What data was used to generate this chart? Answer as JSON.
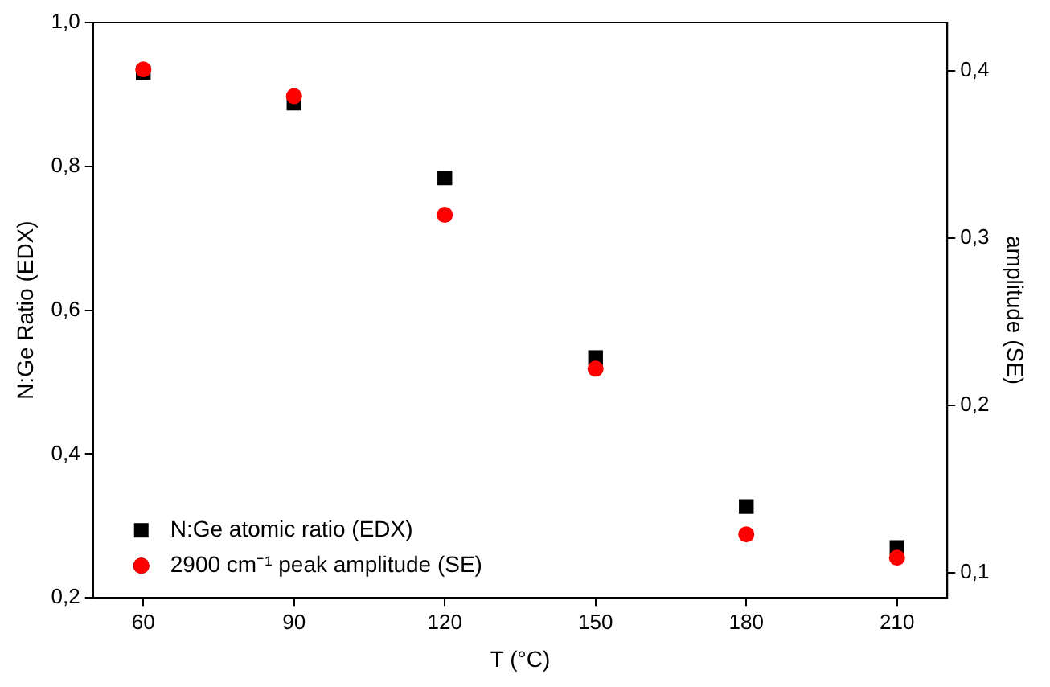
{
  "chart_data": {
    "type": "scatter",
    "xlabel": "T (°C)",
    "ylabel": "N:Ge Ratio (EDX)",
    "y2label": "amplitude (SE)",
    "x": [
      60,
      90,
      120,
      150,
      180,
      210
    ],
    "series": [
      {
        "name": "N:Ge atomic ratio (EDX)",
        "color": "#000000",
        "marker": "square",
        "values": [
          0.93,
          0.888,
          0.784,
          0.534,
          0.327,
          0.27
        ]
      },
      {
        "name": "2900 cm⁻¹ peak amplitude (SE)",
        "color": "#ff0000",
        "marker": "circle",
        "axis": "y2",
        "values": [
          0.401,
          0.385,
          0.314,
          0.222,
          0.123,
          0.109
        ]
      }
    ],
    "xlim": [
      50,
      220
    ],
    "xticks": [
      60,
      90,
      120,
      150,
      180,
      210
    ],
    "ylim": [
      0.2,
      1.0
    ],
    "yticks": [
      {
        "value": 0.2,
        "label": "0,2"
      },
      {
        "value": 0.4,
        "label": "0,4"
      },
      {
        "value": 0.6,
        "label": "0,6"
      },
      {
        "value": 0.8,
        "label": "0,8"
      },
      {
        "value": 1.0,
        "label": "1,0"
      }
    ],
    "y2lim": [
      0.085,
      0.429
    ],
    "y2ticks": [
      {
        "value": 0.1,
        "label": "0,1"
      },
      {
        "value": 0.2,
        "label": "0,2"
      },
      {
        "value": 0.3,
        "label": "0,3"
      },
      {
        "value": 0.4,
        "label": "0,4"
      }
    ],
    "grid": false,
    "legend": "bottom left"
  }
}
